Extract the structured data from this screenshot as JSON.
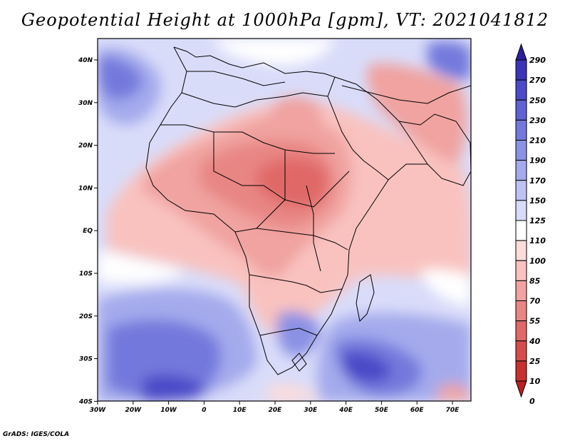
{
  "title": "Geopotential Height at 1000hPa [gpm], VT: 2021041812",
  "credit": "GrADS: IGES/COLA",
  "map": {
    "lon_labels": [
      "30W",
      "20W",
      "10W",
      "0",
      "10E",
      "20E",
      "30E",
      "40E",
      "50E",
      "60E",
      "70E"
    ],
    "lat_labels": [
      "40N",
      "30N",
      "20N",
      "10N",
      "EQ",
      "10S",
      "20S",
      "30S",
      "40S"
    ],
    "lon_range": [
      -30,
      75
    ],
    "lat_range": [
      -40,
      45
    ]
  },
  "colorbar": {
    "levels": [
      "290",
      "270",
      "250",
      "230",
      "210",
      "190",
      "170",
      "150",
      "125",
      "110",
      "100",
      "85",
      "70",
      "55",
      "40",
      "25",
      "10",
      "0"
    ],
    "colors": [
      "#2b1f9e",
      "#3b34b8",
      "#4b4ac8",
      "#5e62d2",
      "#7379dc",
      "#8b91e4",
      "#a4aaec",
      "#bec2f3",
      "#d9dcf9",
      "#ffffff",
      "#fddcda",
      "#f9c2bf",
      "#f0a3a0",
      "#e88684",
      "#e06967",
      "#d64c4b",
      "#c8302f",
      "#b81f22"
    ]
  }
}
